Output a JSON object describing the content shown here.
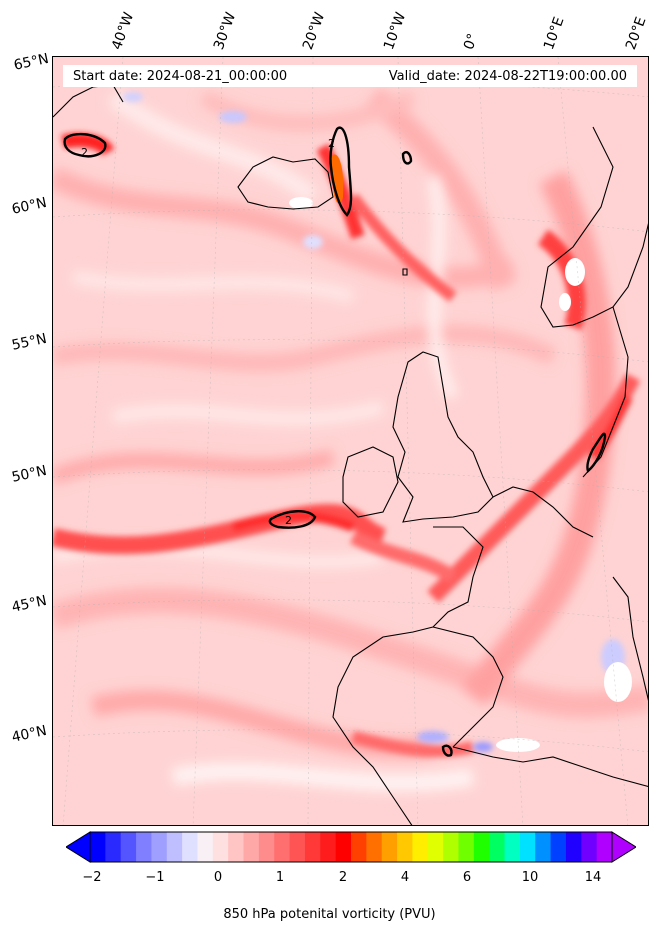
{
  "title": {
    "start_date": "Start date: 2024-08-21_00:00:00",
    "valid_date": "Valid_date: 2024-08-22T19:00:00.00"
  },
  "longitude_labels": [
    "40°W",
    "30°W",
    "20°W",
    "10°W",
    "0°",
    "10°E",
    "20°E"
  ],
  "latitude_labels": [
    "65°N",
    "60°N",
    "55°N",
    "50°N",
    "45°N",
    "40°N"
  ],
  "contour_labels": [
    "2",
    "2",
    "2"
  ],
  "colorbar": {
    "title": "850 hPa potenital vorticity (PVU)",
    "ticks": [
      "−2",
      "−1",
      "0",
      "1",
      "2",
      "4",
      "6",
      "10",
      "14"
    ],
    "colors": [
      "#0000ff",
      "#2a2aff",
      "#5555ff",
      "#7f7fff",
      "#9f9fff",
      "#bfbfff",
      "#dfdfff",
      "#f8f0f5",
      "#ffe0e0",
      "#ffc4c4",
      "#ffa8a8",
      "#ff8c8c",
      "#ff6f6f",
      "#ff5454",
      "#ff3838",
      "#ff1c1c",
      "#ff0000",
      "#ff4000",
      "#ff7000",
      "#ffa000",
      "#ffc800",
      "#ffee00",
      "#e0ff00",
      "#b0ff00",
      "#70ff00",
      "#20ff00",
      "#00ff60",
      "#00ffc0",
      "#00e0ff",
      "#0090ff",
      "#0040ff",
      "#2000ff",
      "#7000ff",
      "#b000ff"
    ]
  }
}
